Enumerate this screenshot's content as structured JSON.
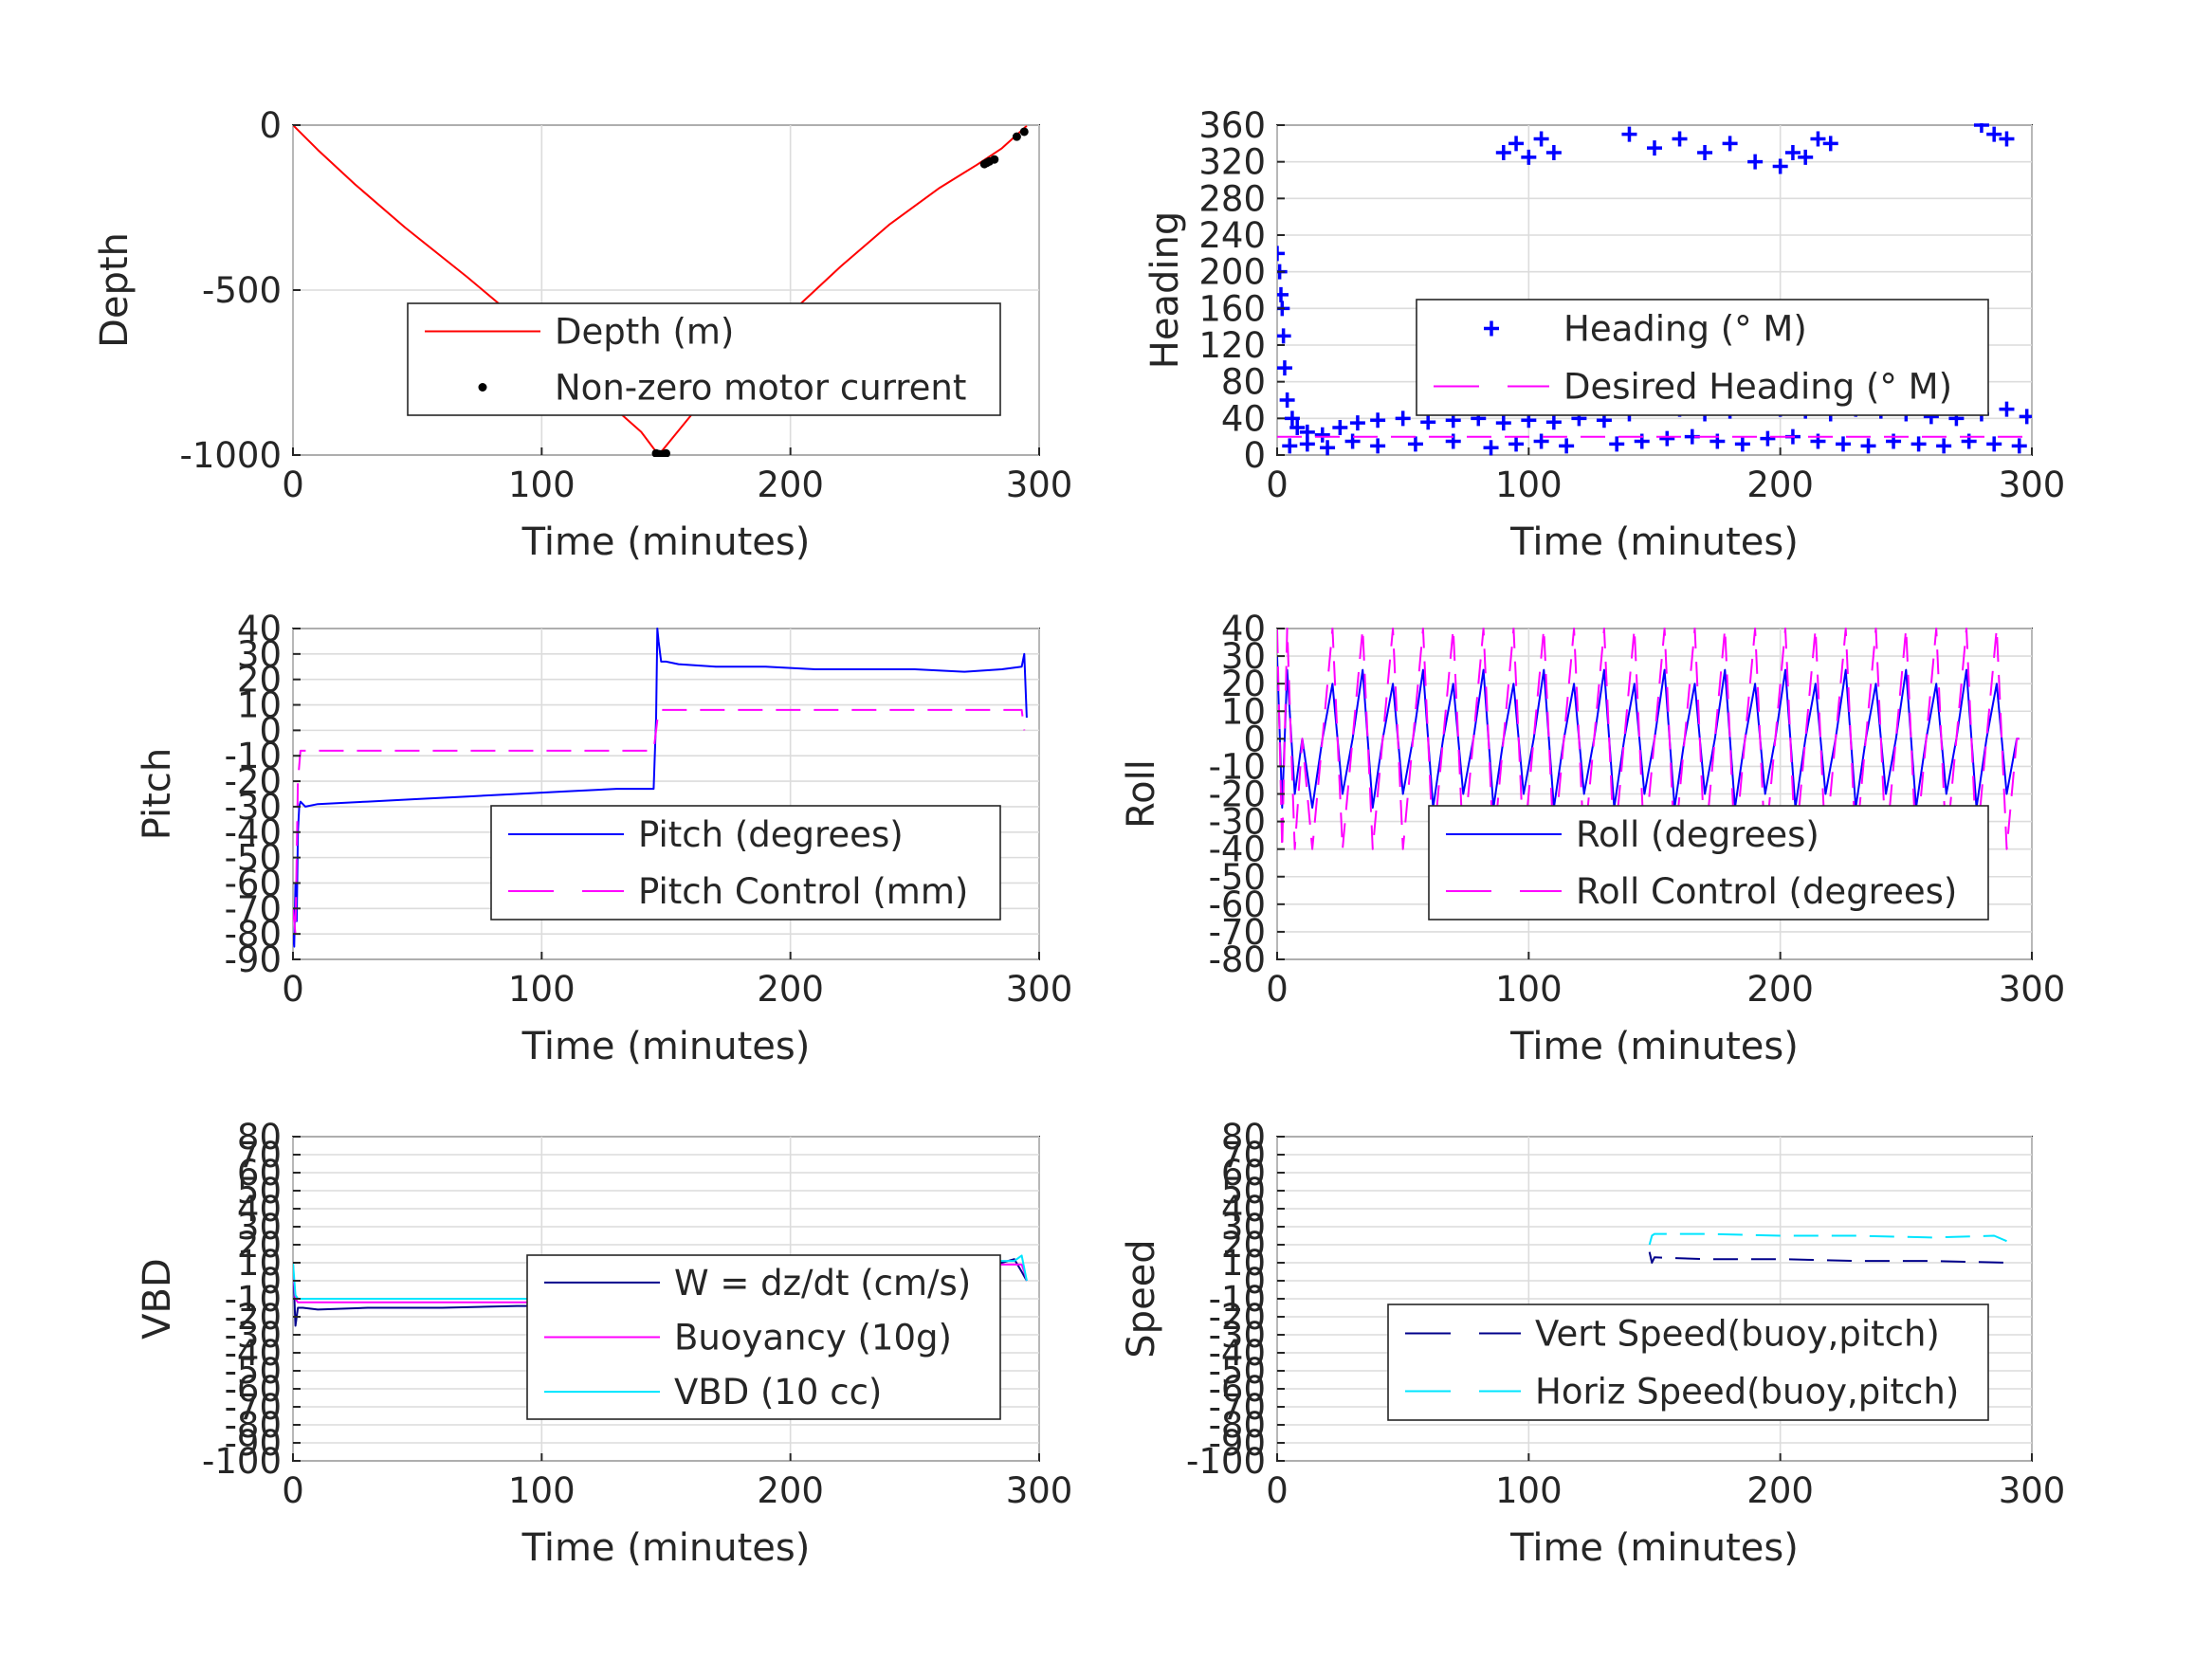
{
  "chart_data": [
    {
      "type": "line",
      "xlabel": "Time (minutes)",
      "ylabel": "Depth",
      "xlim": [
        0,
        300
      ],
      "ylim": [
        -1000,
        0
      ],
      "xticks": [
        "0",
        "100",
        "200",
        "300"
      ],
      "yticks": [
        "-1000",
        "-500",
        "0"
      ],
      "grid": true,
      "legend_position": "center-right",
      "series": [
        {
          "name": "Depth (m)",
          "color": "#ff0000",
          "style": "solid",
          "x": [
            0,
            10,
            25,
            45,
            70,
            100,
            125,
            140,
            147,
            160,
            180,
            200,
            220,
            240,
            260,
            275,
            285,
            295
          ],
          "y": [
            0,
            -75,
            -180,
            -310,
            -460,
            -650,
            -830,
            -930,
            -1000,
            -880,
            -720,
            -570,
            -430,
            -300,
            -190,
            -120,
            -70,
            -2
          ]
        },
        {
          "name": "Non-zero motor current",
          "color": "#000000",
          "style": "dots",
          "x": [
            146,
            147,
            148,
            149,
            150,
            278,
            279,
            280,
            282,
            291,
            294
          ],
          "y": [
            -995,
            -997,
            -998,
            -997,
            -995,
            -118,
            -114,
            -110,
            -104,
            -35,
            -20
          ]
        }
      ]
    },
    {
      "type": "scatter",
      "xlabel": "Time (minutes)",
      "ylabel": "Heading",
      "xlim": [
        0,
        300
      ],
      "ylim": [
        0,
        360
      ],
      "xticks": [
        "0",
        "100",
        "200",
        "300"
      ],
      "yticks": [
        "0",
        "40",
        "80",
        "120",
        "160",
        "200",
        "240",
        "280",
        "320",
        "360"
      ],
      "grid": true,
      "legend_position": "center-right",
      "series": [
        {
          "name": "Heading (° M)",
          "color": "#0000ff",
          "style": "plus-markers",
          "x": [
            0,
            1,
            1.5,
            2,
            2.5,
            3,
            4,
            6,
            8,
            12,
            18,
            25,
            32,
            40,
            50,
            60,
            70,
            80,
            90,
            100,
            110,
            120,
            130,
            140,
            150,
            160,
            170,
            180,
            190,
            200,
            210,
            220,
            230,
            240,
            250,
            260,
            270,
            280,
            290,
            298,
            5,
            12,
            20,
            30,
            40,
            55,
            70,
            85,
            95,
            105,
            115,
            135,
            145,
            155,
            165,
            175,
            185,
            195,
            205,
            215,
            225,
            235,
            245,
            255,
            265,
            275,
            285,
            295,
            90,
            95,
            100,
            105,
            110,
            140,
            150,
            160,
            170,
            180,
            190,
            200,
            205,
            210,
            215,
            220,
            280,
            285,
            290
          ],
          "y": [
            220,
            200,
            175,
            160,
            130,
            95,
            60,
            40,
            30,
            25,
            22,
            30,
            35,
            38,
            40,
            36,
            38,
            40,
            35,
            38,
            36,
            40,
            38,
            45,
            55,
            50,
            45,
            48,
            52,
            50,
            48,
            45,
            50,
            48,
            45,
            42,
            40,
            45,
            50,
            42,
            10,
            12,
            8,
            15,
            10,
            12,
            15,
            8,
            12,
            15,
            10,
            12,
            15,
            18,
            20,
            15,
            12,
            18,
            20,
            15,
            12,
            10,
            15,
            12,
            10,
            15,
            12,
            10,
            330,
            340,
            325,
            345,
            330,
            350,
            335,
            345,
            330,
            340,
            320,
            315,
            330,
            325,
            345,
            340,
            360,
            350,
            345
          ]
        },
        {
          "name": "Desired Heading (° M)",
          "color": "#ff00ff",
          "style": "dashed",
          "x": [
            0,
            300
          ],
          "y": [
            20,
            20
          ]
        }
      ]
    },
    {
      "type": "line",
      "xlabel": "Time (minutes)",
      "ylabel": "Pitch",
      "xlim": [
        0,
        300
      ],
      "ylim": [
        -90,
        40
      ],
      "xticks": [
        "0",
        "100",
        "200",
        "300"
      ],
      "yticks": [
        "-90",
        "-80",
        "-70",
        "-60",
        "-50",
        "-40",
        "-30",
        "-20",
        "-10",
        "0",
        "10",
        "20",
        "30",
        "40"
      ],
      "grid": true,
      "legend_position": "lower-right",
      "series": [
        {
          "name": "Pitch (degrees)",
          "color": "#0000ff",
          "style": "solid",
          "x": [
            0,
            0.5,
            1,
            1.5,
            2,
            2.5,
            3,
            5,
            10,
            30,
            50,
            70,
            90,
            110,
            130,
            145,
            146,
            146.5,
            147,
            148,
            150,
            155,
            170,
            190,
            210,
            230,
            250,
            270,
            285,
            293,
            294,
            295
          ],
          "y": [
            -80,
            -85,
            -60,
            -75,
            -40,
            -30,
            -28,
            -30,
            -29,
            -28,
            -27,
            -26,
            -25,
            -24,
            -23,
            -23,
            5,
            40,
            35,
            27,
            27,
            26,
            25,
            25,
            24,
            24,
            24,
            23,
            24,
            25,
            30,
            5
          ]
        },
        {
          "name": "Pitch Control (mm)",
          "color": "#ff00ff",
          "style": "dashed",
          "x": [
            0,
            1,
            2,
            3,
            5,
            145,
            146,
            147,
            148,
            293,
            294
          ],
          "y": [
            -70,
            -80,
            -20,
            -8,
            -8,
            -8,
            0,
            8,
            8,
            8,
            0
          ]
        }
      ]
    },
    {
      "type": "line",
      "xlabel": "Time (minutes)",
      "ylabel": "Roll",
      "xlim": [
        0,
        300
      ],
      "ylim": [
        -80,
        40
      ],
      "xticks": [
        "0",
        "100",
        "200",
        "300"
      ],
      "yticks": [
        "-80",
        "-70",
        "-60",
        "-50",
        "-40",
        "-30",
        "-20",
        "-10",
        "0",
        "10",
        "20",
        "30",
        "40"
      ],
      "grid": true,
      "legend_position": "lower-right",
      "series": [
        {
          "name": "Roll (degrees)",
          "color": "#0000ff",
          "style": "solid",
          "x": [
            0,
            2,
            4,
            7,
            10,
            14,
            18,
            22,
            26,
            30,
            34,
            38,
            42,
            46,
            50,
            54,
            58,
            62,
            66,
            70,
            74,
            78,
            82,
            86,
            90,
            94,
            98,
            102,
            106,
            110,
            114,
            118,
            122,
            126,
            130,
            134,
            138,
            142,
            146,
            150,
            154,
            158,
            162,
            166,
            170,
            174,
            178,
            182,
            186,
            190,
            194,
            198,
            202,
            206,
            210,
            214,
            218,
            222,
            226,
            230,
            234,
            238,
            242,
            246,
            250,
            254,
            258,
            262,
            266,
            270,
            274,
            278,
            282,
            286,
            290,
            294,
            295
          ],
          "y": [
            30,
            -25,
            25,
            -20,
            0,
            -25,
            0,
            20,
            -20,
            0,
            25,
            -25,
            0,
            20,
            -20,
            0,
            25,
            -25,
            0,
            20,
            -20,
            0,
            25,
            -25,
            0,
            20,
            -20,
            0,
            25,
            -25,
            0,
            20,
            -20,
            0,
            25,
            -25,
            0,
            20,
            -20,
            0,
            25,
            -25,
            0,
            20,
            -20,
            0,
            25,
            -25,
            0,
            20,
            -20,
            0,
            25,
            -25,
            0,
            20,
            -20,
            0,
            25,
            -25,
            0,
            20,
            -20,
            0,
            25,
            -25,
            0,
            20,
            -20,
            0,
            25,
            -25,
            0,
            20,
            -20,
            0,
            0
          ]
        },
        {
          "name": "Roll Control (degrees)",
          "color": "#ff00ff",
          "style": "dashed",
          "x": [
            0,
            2,
            4,
            7,
            10,
            14,
            18,
            22,
            26,
            30,
            34,
            38,
            42,
            46,
            50,
            54,
            58,
            62,
            66,
            70,
            74,
            78,
            82,
            86,
            90,
            94,
            98,
            102,
            106,
            110,
            114,
            118,
            122,
            126,
            130,
            134,
            138,
            142,
            146,
            150,
            154,
            158,
            162,
            166,
            170,
            174,
            178,
            182,
            186,
            190,
            194,
            198,
            202,
            206,
            210,
            214,
            218,
            222,
            226,
            230,
            234,
            238,
            242,
            246,
            250,
            254,
            258,
            262,
            266,
            270,
            274,
            278,
            282,
            286,
            290,
            294,
            295
          ],
          "y": [
            40,
            -40,
            40,
            -40,
            0,
            -40,
            0,
            40,
            -40,
            0,
            40,
            -40,
            0,
            40,
            -40,
            0,
            40,
            -40,
            0,
            40,
            -40,
            0,
            40,
            -40,
            0,
            40,
            -40,
            0,
            40,
            -40,
            0,
            40,
            -40,
            0,
            40,
            -40,
            0,
            40,
            -40,
            0,
            40,
            -40,
            0,
            40,
            -40,
            0,
            40,
            -40,
            0,
            40,
            -40,
            0,
            40,
            -40,
            0,
            40,
            -40,
            0,
            40,
            -40,
            0,
            40,
            -40,
            0,
            40,
            -40,
            0,
            40,
            -40,
            0,
            40,
            -40,
            0,
            40,
            -40,
            0,
            0
          ]
        }
      ]
    },
    {
      "type": "line",
      "xlabel": "Time (minutes)",
      "ylabel": "VBD",
      "xlim": [
        0,
        300
      ],
      "ylim": [
        -100,
        80
      ],
      "xticks": [
        "0",
        "100",
        "200",
        "300"
      ],
      "yticks": [
        "-100",
        "-90",
        "-80",
        "-70",
        "-60",
        "-50",
        "-40",
        "-30",
        "-20",
        "-10",
        "0",
        "10",
        "20",
        "30",
        "40",
        "50",
        "60",
        "70",
        "80"
      ],
      "grid": true,
      "legend_position": "lower-right",
      "series": [
        {
          "name": "W = dz/dt (cm/s)",
          "color": "#00008b",
          "style": "solid",
          "x": [
            0,
            1,
            2,
            4,
            10,
            30,
            60,
            90,
            120,
            140,
            145,
            146,
            148,
            150,
            170,
            200,
            230,
            260,
            285,
            290,
            293,
            295
          ],
          "y": [
            10,
            -25,
            -15,
            -15,
            -16,
            -15,
            -15,
            -14,
            -14,
            -14,
            -10,
            5,
            12,
            12,
            12,
            11,
            10,
            10,
            10,
            12,
            5,
            0
          ]
        },
        {
          "name": "Buoyancy (10g)",
          "color": "#ff00ff",
          "style": "solid",
          "x": [
            0,
            1,
            2,
            145,
            146,
            147,
            293,
            294,
            295
          ],
          "y": [
            5,
            -10,
            -12,
            -12,
            0,
            9,
            9,
            5,
            0
          ]
        },
        {
          "name": "VBD (10 cc)",
          "color": "#00e5ff",
          "style": "solid",
          "x": [
            0,
            1,
            2,
            145,
            146,
            147,
            290,
            293,
            295
          ],
          "y": [
            10,
            -8,
            -10,
            -10,
            5,
            11,
            11,
            14,
            0
          ]
        }
      ]
    },
    {
      "type": "line",
      "xlabel": "Time (minutes)",
      "ylabel": "Speed",
      "xlim": [
        0,
        300
      ],
      "ylim": [
        -100,
        80
      ],
      "xticks": [
        "0",
        "100",
        "200",
        "300"
      ],
      "yticks": [
        "-100",
        "-90",
        "-80",
        "-70",
        "-60",
        "-50",
        "-40",
        "-30",
        "-20",
        "-10",
        "0",
        "10",
        "20",
        "30",
        "40",
        "50",
        "60",
        "70",
        "80"
      ],
      "grid": true,
      "legend_position": "lower-right",
      "series": [
        {
          "name": "Vert Speed(buoy,pitch)",
          "color": "#00008b",
          "style": "dashed",
          "x": [
            148,
            149,
            150,
            170,
            200,
            230,
            260,
            290
          ],
          "y": [
            16,
            10,
            13,
            12,
            12,
            11,
            11,
            10
          ]
        },
        {
          "name": "Horiz Speed(buoy,pitch)",
          "color": "#00e5ff",
          "style": "dashed",
          "x": [
            148,
            149,
            150,
            170,
            200,
            230,
            260,
            285,
            290
          ],
          "y": [
            20,
            25,
            26,
            26,
            25,
            25,
            24,
            25,
            22
          ]
        }
      ]
    }
  ]
}
